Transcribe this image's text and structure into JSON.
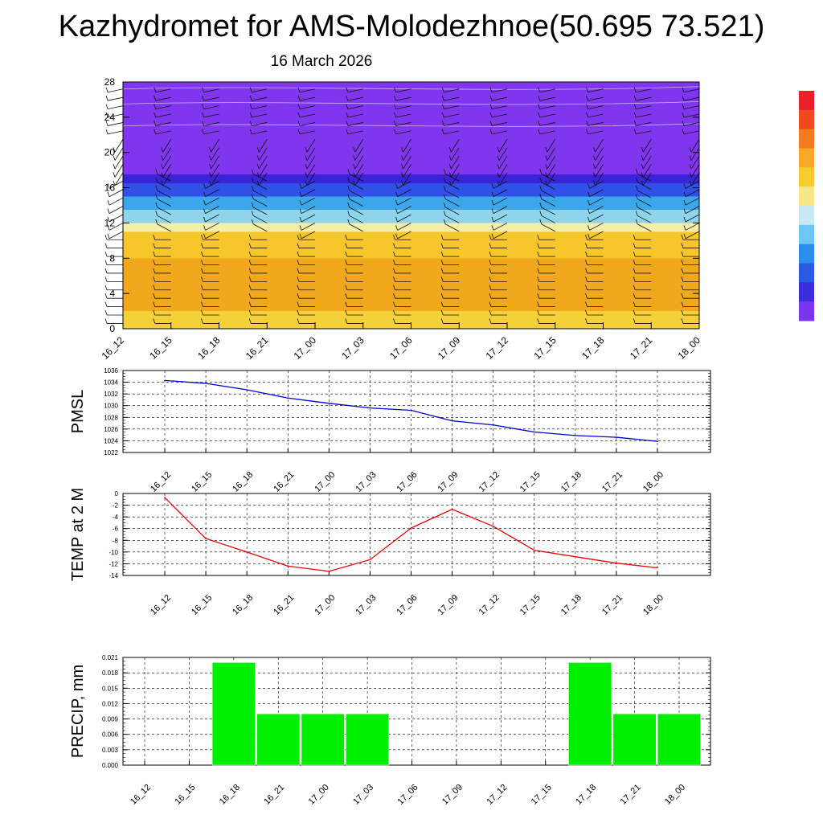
{
  "title": "Kazhydromet for AMS-Molodezhnoe(50.695 73.521)",
  "date": "16 March 2026",
  "time_labels": [
    "16_12",
    "16_15",
    "16_18",
    "16_21",
    "17_00",
    "17_03",
    "17_06",
    "17_09",
    "17_12",
    "17_15",
    "17_18",
    "17_21",
    "18_00"
  ],
  "colors": {
    "pmsl_line": "#0000cc",
    "temp_line": "#ee0000",
    "precip_bar": "#00ee00",
    "grid": "#000000"
  },
  "chart_data": [
    {
      "id": "cross-section",
      "type": "heatmap",
      "title": "",
      "xlabel": "",
      "ylabel": "",
      "x": [
        "16_12",
        "16_15",
        "16_18",
        "16_21",
        "17_00",
        "17_03",
        "17_06",
        "17_09",
        "17_12",
        "17_15",
        "17_18",
        "17_21",
        "18_00"
      ],
      "ylim": [
        0,
        28
      ],
      "yticks": [
        0,
        4,
        8,
        12,
        16,
        20,
        24,
        28
      ],
      "bands": [
        {
          "from": 0,
          "to": 2,
          "color": "#f5d23a"
        },
        {
          "from": 2,
          "to": 8,
          "color": "#f2a81e"
        },
        {
          "from": 8,
          "to": 11,
          "color": "#f7c72c"
        },
        {
          "from": 11,
          "to": 12,
          "color": "#f3eea8"
        },
        {
          "from": 12,
          "to": 13.5,
          "color": "#8fd4ec"
        },
        {
          "from": 13.5,
          "to": 15,
          "color": "#3ca6ec"
        },
        {
          "from": 15,
          "to": 16.5,
          "color": "#3050e8"
        },
        {
          "from": 16.5,
          "to": 17.5,
          "color": "#3a24d8"
        },
        {
          "from": 17.5,
          "to": 28,
          "color": "#8036ee"
        }
      ],
      "colorbar": [
        "#e8202a",
        "#f04a1e",
        "#f47a20",
        "#f6a826",
        "#f8cc2e",
        "#f6e88a",
        "#c8e8f4",
        "#6ec6f2",
        "#2c8eea",
        "#2c5ae4",
        "#3c2cdc",
        "#7a36ee"
      ]
    },
    {
      "id": "pmsl",
      "type": "line",
      "ylabel": "PMSL",
      "xlabel": "",
      "categories": [
        "16_12",
        "16_15",
        "16_18",
        "16_21",
        "17_00",
        "17_03",
        "17_06",
        "17_09",
        "17_12",
        "17_15",
        "17_18",
        "17_21",
        "18_00"
      ],
      "values": [
        1034.3,
        1033.8,
        1032.7,
        1031.3,
        1030.4,
        1029.6,
        1029.2,
        1027.4,
        1026.7,
        1025.5,
        1024.9,
        1024.6,
        1023.9
      ],
      "ylim": [
        1022,
        1036
      ],
      "yticks": [
        1022,
        1024,
        1026,
        1028,
        1030,
        1032,
        1034,
        1036
      ]
    },
    {
      "id": "temp",
      "type": "line",
      "ylabel": "TEMP at 2 M",
      "xlabel": "",
      "categories": [
        "16_12",
        "16_15",
        "16_18",
        "16_21",
        "17_00",
        "17_03",
        "17_06",
        "17_09",
        "17_12",
        "17_15",
        "17_18",
        "17_21",
        "18_00"
      ],
      "values": [
        -0.7,
        -7.7,
        -10.0,
        -12.4,
        -13.3,
        -11.3,
        -5.9,
        -2.7,
        -5.6,
        -9.7,
        -10.8,
        -11.9,
        -12.7
      ],
      "ylim": [
        -14,
        0
      ],
      "yticks": [
        0,
        -2,
        -4,
        -6,
        -8,
        -10,
        -12,
        -14
      ]
    },
    {
      "id": "precip",
      "type": "bar",
      "ylabel": "PRECIP, mm",
      "xlabel": "",
      "categories": [
        "16_12",
        "16_15",
        "16_18",
        "16_21",
        "17_00",
        "17_03",
        "17_06",
        "17_09",
        "17_12",
        "17_15",
        "17_18",
        "17_21",
        "18_00"
      ],
      "values": [
        0,
        0,
        0.02,
        0.01,
        0.01,
        0.01,
        0,
        0,
        0,
        0,
        0.02,
        0.01,
        0.01
      ],
      "ylim": [
        0,
        0.021
      ],
      "yticks": [
        "0.000",
        "0.003",
        "0.006",
        "0.009",
        "0.012",
        "0.015",
        "0.018",
        "0.021"
      ]
    }
  ]
}
